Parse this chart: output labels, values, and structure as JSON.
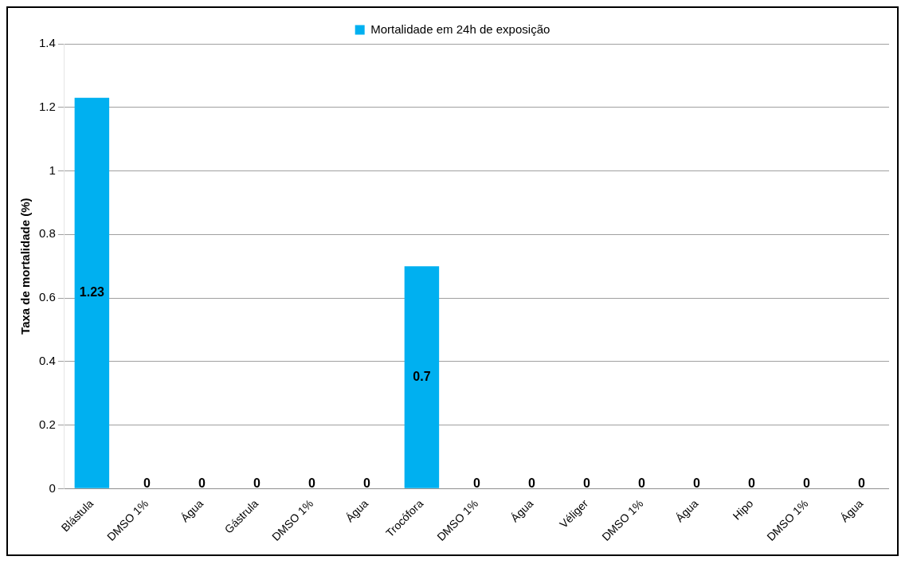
{
  "chart_data": {
    "type": "bar",
    "categories": [
      "Blástula",
      "DMSO 1%",
      "Água",
      "Gástrula",
      "DMSO 1%",
      "Água",
      "Trocófora",
      "DMSO 1%",
      "Água",
      "Véliger",
      "DMSO 1%",
      "Água",
      "Hipo",
      "DMSO 1%",
      "Água"
    ],
    "series": [
      {
        "name": "Mortalidade em 24h de exposição",
        "color": "#00b0f0",
        "values": [
          1.23,
          0,
          0,
          0,
          0,
          0,
          0.7,
          0,
          0,
          0,
          0,
          0,
          0,
          0,
          0
        ]
      }
    ],
    "ylabel": "Taxa de mortalidade (%)",
    "ylim": [
      0,
      1.4
    ],
    "yticks": [
      0,
      0.2,
      0.4,
      0.6,
      0.8,
      1,
      1.2,
      1.4
    ],
    "grid": "y",
    "legend": "top",
    "data_labels": true
  }
}
